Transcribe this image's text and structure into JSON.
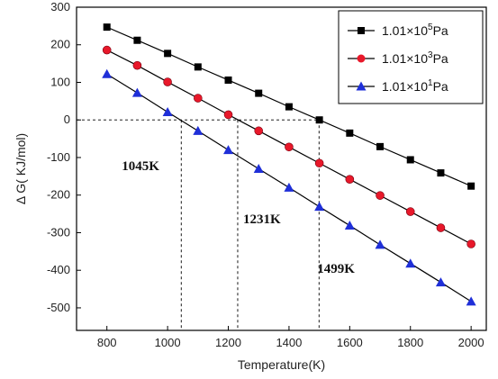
{
  "chart_data": {
    "type": "line",
    "title": "",
    "xlabel": "Temperature(K)",
    "ylabel": "Δ G(  KJ/mol)",
    "xlim": [
      700,
      2050
    ],
    "ylim": [
      -560,
      300
    ],
    "xticks": [
      800,
      1000,
      1200,
      1400,
      1600,
      1800,
      2000
    ],
    "yticks": [
      300,
      200,
      100,
      0,
      -100,
      -200,
      -300,
      -400,
      -500
    ],
    "x": [
      800,
      900,
      1000,
      1100,
      1200,
      1300,
      1400,
      1500,
      1600,
      1700,
      1800,
      1900,
      2000
    ],
    "legend_position": "top-right",
    "grid": false,
    "series": [
      {
        "name": "1.01×10^5Pa",
        "legend": {
          "base": "1.01×10",
          "exp": "5",
          "unit": "Pa"
        },
        "marker": "square",
        "color": "#000000",
        "values": [
          247,
          212,
          177,
          141,
          106,
          71,
          35,
          0,
          -35,
          -71,
          -106,
          -141,
          -176
        ]
      },
      {
        "name": "1.01×10^3Pa",
        "legend": {
          "base": "1.01×10",
          "exp": "3",
          "unit": "Pa"
        },
        "marker": "circle",
        "color": "#e8182a",
        "values": [
          186,
          145,
          101,
          58,
          14,
          -29,
          -72,
          -115,
          -158,
          -201,
          -244,
          -287,
          -330
        ]
      },
      {
        "name": "1.01×10^1Pa",
        "legend": {
          "base": "1.01×10",
          "exp": "1",
          "unit": "Pa"
        },
        "marker": "triangle",
        "color": "#1f2fd8",
        "values": [
          122,
          72,
          21,
          -29,
          -80,
          -130,
          -180,
          -231,
          -281,
          -332,
          -382,
          -432,
          -483
        ]
      }
    ],
    "reference_lines": [
      {
        "type": "horizontal",
        "y": 0,
        "x_from": 700,
        "x_to": 1499
      }
    ],
    "annotations": [
      {
        "text": "1045K",
        "x": 1045
      },
      {
        "text": "1231K",
        "x": 1231
      },
      {
        "text": "1499K",
        "x": 1499
      }
    ]
  }
}
